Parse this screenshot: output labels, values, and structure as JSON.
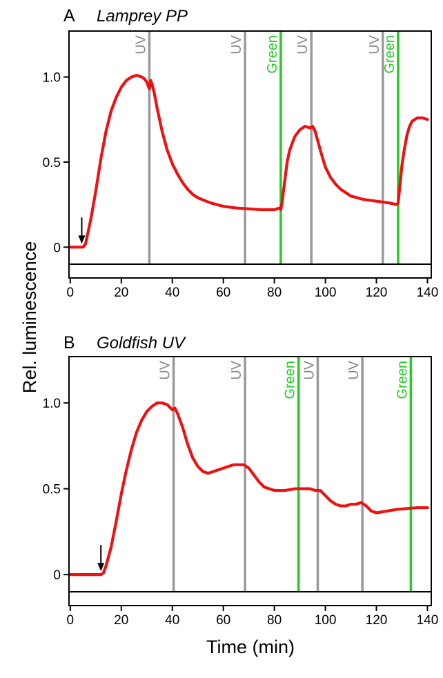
{
  "ylabel": "Rel. luminescence",
  "xlabel": "Time (min)",
  "colors": {
    "trace": "#ee1111",
    "uv": "#999999",
    "green": "#22cc22",
    "axis": "#000000"
  },
  "chart_data": [
    {
      "type": "line",
      "letter": "A",
      "title": "Lamprey PP",
      "xlim": [
        -0.5,
        141.5
      ],
      "ylim": [
        -0.1,
        1.27
      ],
      "xticks": [
        0,
        20,
        40,
        60,
        80,
        100,
        120,
        140
      ],
      "yticks": [
        0,
        0.5,
        1.0
      ],
      "ytick_labels": [
        "0",
        "0.5",
        "1.0"
      ],
      "arrow_x": 4.5,
      "stimuli": [
        {
          "label": "UV",
          "x": 31,
          "color": "uv"
        },
        {
          "label": "UV",
          "x": 68.5,
          "color": "uv"
        },
        {
          "label": "Green",
          "x": 82.5,
          "color": "green"
        },
        {
          "label": "UV",
          "x": 94.5,
          "color": "uv"
        },
        {
          "label": "UV",
          "x": 122.5,
          "color": "uv"
        },
        {
          "label": "Green",
          "x": 128.5,
          "color": "green"
        }
      ],
      "series": [
        {
          "x": [
            0,
            5,
            6,
            8,
            10,
            12,
            14,
            16,
            18,
            20,
            22,
            24,
            26,
            28,
            29,
            30,
            31,
            31.5,
            32,
            33,
            34,
            36,
            38,
            40,
            42,
            44,
            46,
            48,
            50,
            55,
            60,
            65,
            70,
            75,
            80,
            82,
            82.5,
            83,
            84,
            85,
            86,
            88,
            90,
            92,
            94,
            95,
            96,
            98,
            100,
            102,
            104,
            106,
            108,
            110,
            115,
            120,
            125,
            128,
            128.5,
            129,
            130,
            131,
            132,
            133,
            134,
            136,
            138,
            140
          ],
          "y": [
            0,
            0,
            0.02,
            0.16,
            0.33,
            0.52,
            0.68,
            0.8,
            0.88,
            0.94,
            0.98,
            1.0,
            1.01,
            1.0,
            0.99,
            0.97,
            0.93,
            0.98,
            0.96,
            0.9,
            0.82,
            0.68,
            0.57,
            0.49,
            0.43,
            0.38,
            0.34,
            0.31,
            0.29,
            0.26,
            0.24,
            0.23,
            0.225,
            0.22,
            0.22,
            0.23,
            0.22,
            0.26,
            0.38,
            0.5,
            0.57,
            0.65,
            0.69,
            0.71,
            0.7,
            0.71,
            0.68,
            0.57,
            0.47,
            0.41,
            0.37,
            0.34,
            0.32,
            0.3,
            0.28,
            0.27,
            0.26,
            0.25,
            0.26,
            0.33,
            0.48,
            0.58,
            0.66,
            0.71,
            0.74,
            0.76,
            0.76,
            0.75
          ]
        }
      ]
    },
    {
      "type": "line",
      "letter": "B",
      "title": "Goldfish UV",
      "xlim": [
        -0.5,
        141.5
      ],
      "ylim": [
        -0.1,
        1.27
      ],
      "xticks": [
        0,
        20,
        40,
        60,
        80,
        100,
        120,
        140
      ],
      "yticks": [
        0,
        0.5,
        1.0
      ],
      "ytick_labels": [
        "0",
        "0.5",
        "1.0"
      ],
      "arrow_x": 12,
      "stimuli": [
        {
          "label": "UV",
          "x": 40.5,
          "color": "uv"
        },
        {
          "label": "UV",
          "x": 68.5,
          "color": "uv"
        },
        {
          "label": "Green",
          "x": 89.5,
          "color": "green"
        },
        {
          "label": "UV",
          "x": 97,
          "color": "uv"
        },
        {
          "label": "UV",
          "x": 114.5,
          "color": "uv"
        },
        {
          "label": "Green",
          "x": 133.5,
          "color": "green"
        }
      ],
      "series": [
        {
          "x": [
            0,
            12,
            13,
            14,
            16,
            18,
            20,
            22,
            24,
            26,
            28,
            30,
            32,
            34,
            36,
            38,
            40,
            41,
            42,
            44,
            46,
            48,
            50,
            52,
            54,
            56,
            58,
            60,
            62,
            64,
            66,
            68,
            70,
            72,
            74,
            76,
            78,
            80,
            84,
            88,
            90,
            92,
            94,
            96,
            98,
            100,
            102,
            104,
            106,
            108,
            110,
            112,
            114,
            116,
            118,
            120,
            124,
            128,
            132,
            136,
            140
          ],
          "y": [
            0,
            0,
            0.01,
            0.05,
            0.16,
            0.31,
            0.47,
            0.61,
            0.73,
            0.83,
            0.9,
            0.95,
            0.98,
            1.0,
            1.0,
            0.99,
            0.96,
            0.97,
            0.94,
            0.86,
            0.76,
            0.68,
            0.63,
            0.6,
            0.59,
            0.6,
            0.61,
            0.62,
            0.63,
            0.64,
            0.64,
            0.64,
            0.62,
            0.58,
            0.54,
            0.51,
            0.5,
            0.49,
            0.49,
            0.5,
            0.5,
            0.5,
            0.5,
            0.49,
            0.49,
            0.46,
            0.43,
            0.41,
            0.4,
            0.4,
            0.41,
            0.41,
            0.42,
            0.4,
            0.37,
            0.36,
            0.37,
            0.38,
            0.385,
            0.39,
            0.39
          ]
        }
      ]
    }
  ]
}
